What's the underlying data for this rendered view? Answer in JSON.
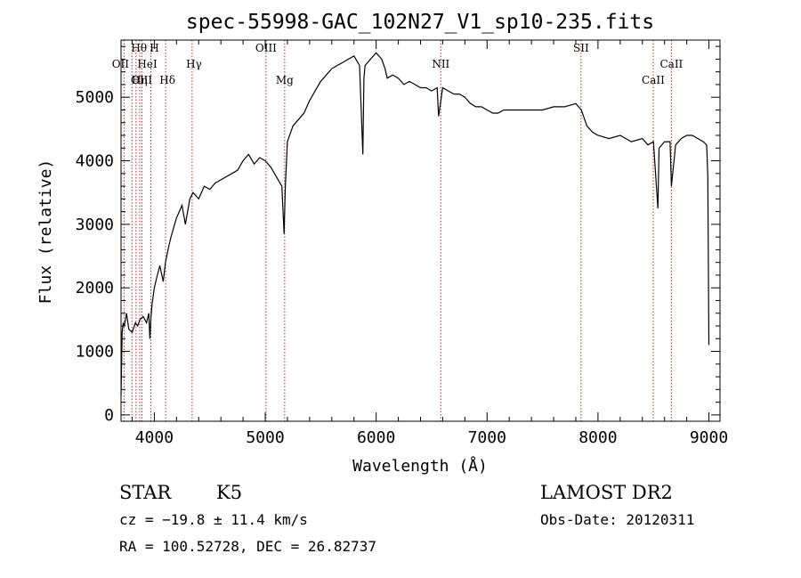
{
  "chart_data": {
    "type": "line",
    "title": "spec-55998-GAC_102N27_V1_sp10-235.fits",
    "xlabel": "Wavelength (Å)",
    "ylabel": "Flux (relative)",
    "xlim": [
      3700,
      9100
    ],
    "ylim": [
      -100,
      5900
    ],
    "xticks": [
      4000,
      5000,
      6000,
      7000,
      8000,
      9000
    ],
    "yticks": [
      0,
      1000,
      2000,
      3000,
      4000,
      5000
    ],
    "grid": false,
    "series": [
      {
        "color": "#000000",
        "x": [
          3700,
          3710,
          3720,
          3730,
          3750,
          3770,
          3800,
          3830,
          3850,
          3870,
          3900,
          3930,
          3950,
          3960,
          3970,
          3980,
          4000,
          4020,
          4050,
          4080,
          4100,
          4130,
          4150,
          4200,
          4250,
          4280,
          4300,
          4320,
          4350,
          4400,
          4450,
          4500,
          4550,
          4600,
          4650,
          4700,
          4750,
          4800,
          4850,
          4900,
          4950,
          5000,
          5050,
          5100,
          5150,
          5170,
          5180,
          5200,
          5250,
          5300,
          5350,
          5400,
          5450,
          5500,
          5550,
          5600,
          5650,
          5700,
          5750,
          5800,
          5850,
          5880,
          5890,
          5900,
          5950,
          6000,
          6050,
          6080,
          6100,
          6150,
          6200,
          6250,
          6300,
          6350,
          6400,
          6450,
          6500,
          6550,
          6563,
          6600,
          6650,
          6700,
          6750,
          6800,
          6850,
          6900,
          6950,
          7000,
          7050,
          7100,
          7150,
          7200,
          7300,
          7400,
          7500,
          7600,
          7700,
          7800,
          7850,
          7900,
          7950,
          8000,
          8100,
          8200,
          8300,
          8400,
          8450,
          8500,
          8540,
          8550,
          8600,
          8650,
          8662,
          8700,
          8750,
          8800,
          8850,
          8900,
          8950,
          8980,
          8990,
          9000
        ],
        "y": [
          300,
          1300,
          1450,
          1400,
          1600,
          1350,
          1300,
          1450,
          1400,
          1500,
          1550,
          1450,
          1600,
          1200,
          1550,
          1750,
          2000,
          2150,
          2350,
          2100,
          2400,
          2650,
          2800,
          3100,
          3300,
          3000,
          3200,
          3400,
          3500,
          3400,
          3600,
          3550,
          3650,
          3700,
          3750,
          3800,
          3850,
          4000,
          4100,
          3950,
          4050,
          4000,
          3900,
          3750,
          3600,
          2850,
          3550,
          4300,
          4550,
          4650,
          4750,
          4950,
          5100,
          5250,
          5350,
          5450,
          5500,
          5550,
          5600,
          5650,
          5500,
          4100,
          5300,
          5500,
          5600,
          5700,
          5600,
          5450,
          5300,
          5350,
          5300,
          5200,
          5250,
          5200,
          5150,
          5150,
          5100,
          5150,
          4700,
          5150,
          5100,
          5050,
          5050,
          5000,
          4900,
          4850,
          4850,
          4800,
          4750,
          4750,
          4800,
          4800,
          4800,
          4800,
          4800,
          4850,
          4850,
          4900,
          4800,
          4550,
          4450,
          4400,
          4350,
          4400,
          4300,
          4350,
          4250,
          4300,
          3250,
          4200,
          4300,
          4300,
          3600,
          4250,
          4350,
          4400,
          4400,
          4350,
          4300,
          4250,
          3750,
          1100
        ]
      }
    ],
    "lines": [
      {
        "label": "Hθ",
        "x": 3798
      },
      {
        "label": "OII",
        "x": 3727
      },
      {
        "label": "OIII",
        "x": 3869
      },
      {
        "label": "H",
        "x": 3969
      },
      {
        "label": "HeI",
        "x": 3889
      },
      {
        "label": "Hη",
        "x": 3835
      },
      {
        "label": "Hδ",
        "x": 4102
      },
      {
        "label": "Hγ",
        "x": 4341
      },
      {
        "label": "OIII",
        "x": 5007
      },
      {
        "label": "Mg",
        "x": 5175
      },
      {
        "label": "NII",
        "x": 6583
      },
      {
        "label": "SII",
        "x": 7847
      },
      {
        "label": "CaII",
        "x": 8662
      },
      {
        "label": "CaII",
        "x": 8498
      }
    ]
  },
  "info": {
    "obj_class": "STAR",
    "subclass": "K5",
    "survey": "LAMOST DR2",
    "cz": "cz = −19.8 ± 11.4 km/s",
    "obs_date": "Obs-Date: 20120311",
    "coords": "RA = 100.52728, DEC =  26.82737"
  }
}
